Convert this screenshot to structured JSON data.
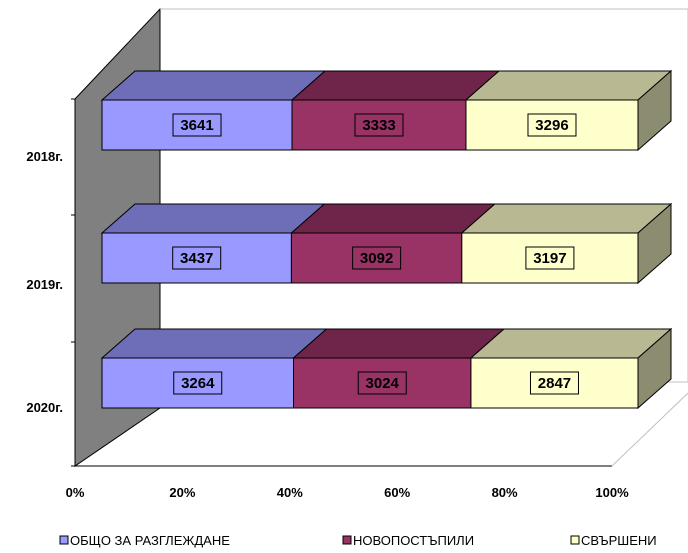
{
  "chart_data": {
    "type": "bar",
    "orientation": "horizontal",
    "stacking": "percent",
    "style": "3d",
    "categories": [
      "2018г.",
      "2019г.",
      "2020г."
    ],
    "series": [
      {
        "name": "ОБЩО ЗА РАЗГЛЕЖДАНЕ",
        "values": [
          3641,
          3437,
          3264
        ],
        "color": "#9999FF"
      },
      {
        "name": "НОВОПОСТЪПИЛИ",
        "values": [
          3333,
          3092,
          3024
        ],
        "color": "#993366"
      },
      {
        "name": "СВЪРШЕНИ",
        "values": [
          3296,
          3197,
          2847
        ],
        "color": "#FFFFCC"
      }
    ],
    "xaxis": {
      "ticks": [
        "0%",
        "20%",
        "40%",
        "60%",
        "80%",
        "100%"
      ],
      "range": [
        0,
        100
      ]
    },
    "grid": false,
    "legend_position": "bottom",
    "wall_color": "#808080"
  }
}
